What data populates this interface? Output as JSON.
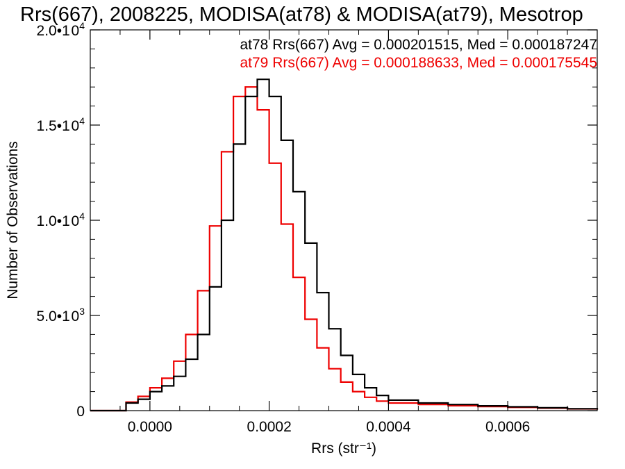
{
  "chart_data": {
    "type": "line",
    "title": "Rrs(667), 2008225, MODISA(at78) & MODISA(at79), Mesotrop",
    "xlabel": "Rrs (str⁻¹)",
    "ylabel": "Number of Observations",
    "xlim": [
      -0.0001,
      0.00075
    ],
    "ylim": [
      0,
      20000
    ],
    "x_ticks": [
      0.0,
      0.0002,
      0.0004,
      0.0006
    ],
    "x_tick_labels": [
      "0.0000",
      "0.0002",
      "0.0004",
      "0.0006"
    ],
    "y_ticks": [
      0,
      5000,
      10000,
      15000,
      20000
    ],
    "y_tick_labels": [
      {
        "mantissa": "0",
        "exp": ""
      },
      {
        "mantissa": "5.0•1 0",
        "exp": "3"
      },
      {
        "mantissa": "1.0•1 0",
        "exp": "4"
      },
      {
        "mantissa": "1.5•1 0",
        "exp": "4"
      },
      {
        "mantissa": "2.0•1 0",
        "exp": "4"
      }
    ],
    "grid": false,
    "legend_position": "top-right",
    "series": [
      {
        "name": "at78 Rrs(667) Avg = 0.000201515, Med = 0.000187247",
        "color": "#000000",
        "x": [
          -0.0001,
          -6e-05,
          -4e-05,
          -2e-05,
          0.0,
          2e-05,
          4e-05,
          6e-05,
          8e-05,
          0.0001,
          0.00012,
          0.00014,
          0.00016,
          0.00018,
          0.0002,
          0.00022,
          0.00024,
          0.00026,
          0.00028,
          0.0003,
          0.00032,
          0.00034,
          0.00036,
          0.00038,
          0.0004,
          0.00045,
          0.0005,
          0.00055,
          0.0006,
          0.00065,
          0.0007,
          0.00075
        ],
        "y": [
          0,
          0,
          400,
          600,
          1000,
          1300,
          1800,
          2700,
          4000,
          6500,
          10000,
          14000,
          16500,
          17400,
          16500,
          14200,
          11500,
          8800,
          6200,
          4300,
          2900,
          1900,
          1200,
          800,
          550,
          400,
          320,
          250,
          200,
          150,
          100,
          60
        ]
      },
      {
        "name": "at79 Rrs(667) Avg = 0.000188633, Med = 0.000175545",
        "color": "#ee0000",
        "x": [
          -0.0001,
          -6e-05,
          -4e-05,
          -2e-05,
          0.0,
          2e-05,
          4e-05,
          6e-05,
          8e-05,
          0.0001,
          0.00012,
          0.00014,
          0.00016,
          0.00018,
          0.0002,
          0.00022,
          0.00024,
          0.00026,
          0.00028,
          0.0003,
          0.00032,
          0.00034,
          0.00036,
          0.00038,
          0.0004,
          0.00045,
          0.0005,
          0.00055,
          0.0006,
          0.00065,
          0.0007,
          0.00075
        ],
        "y": [
          0,
          0,
          450,
          750,
          1200,
          1700,
          2600,
          4000,
          6300,
          9700,
          13600,
          16500,
          17000,
          15800,
          13000,
          9800,
          7000,
          4800,
          3300,
          2200,
          1500,
          1000,
          700,
          500,
          400,
          320,
          260,
          210,
          170,
          130,
          90,
          50
        ]
      }
    ]
  }
}
